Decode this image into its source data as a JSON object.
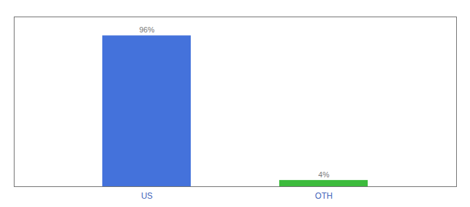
{
  "chart_data": {
    "type": "bar",
    "categories": [
      "US",
      "OTH"
    ],
    "values": [
      96,
      4
    ],
    "value_labels": [
      "96%",
      "4%"
    ],
    "colors": [
      "#4472db",
      "#3dbb3d"
    ],
    "ylim": [
      0,
      108
    ],
    "data_labels": true,
    "tick_labels": "x",
    "grid": false
  }
}
